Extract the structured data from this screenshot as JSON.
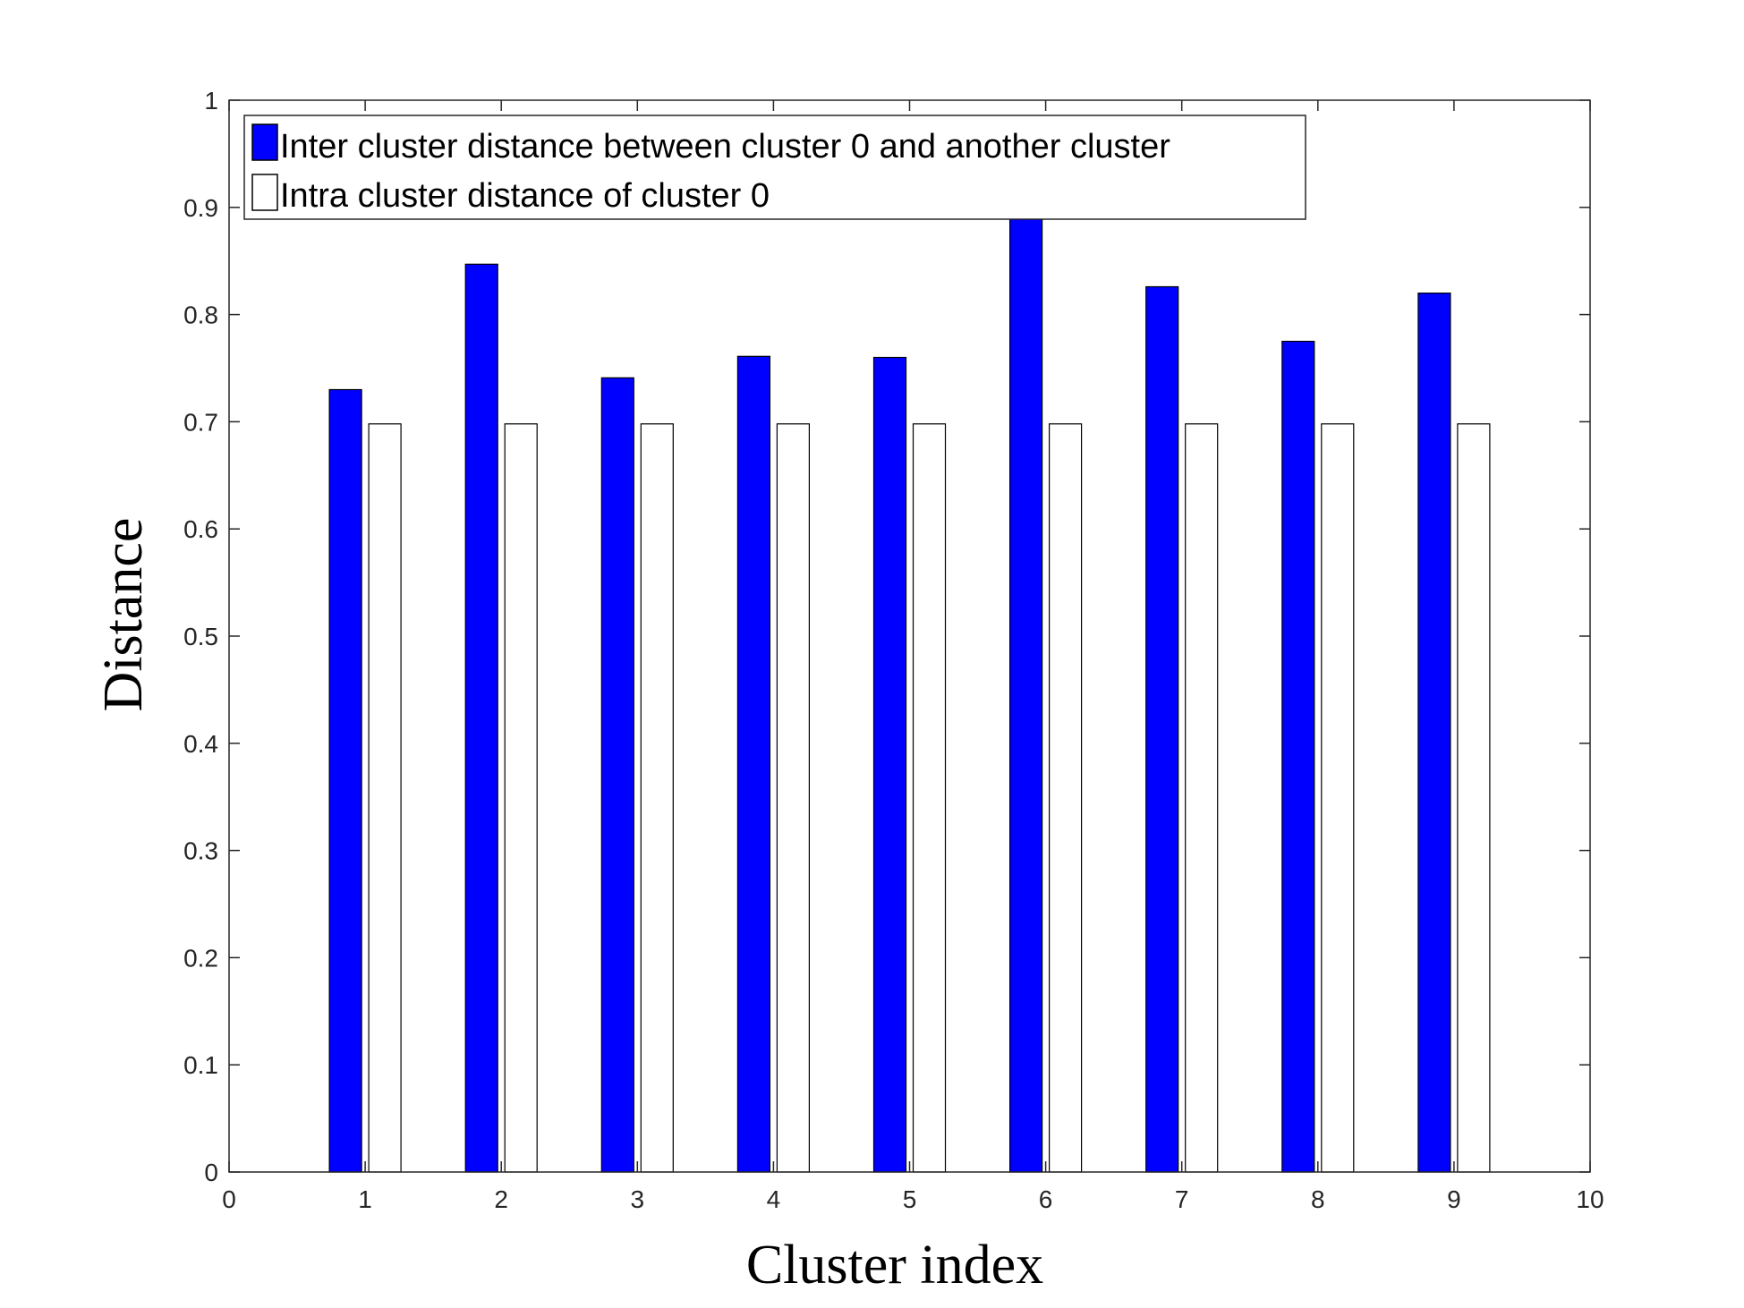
{
  "chart_data": {
    "type": "bar",
    "xlabel": "Cluster index",
    "ylabel": "Distance",
    "xlim": [
      0,
      10
    ],
    "ylim": [
      0,
      1
    ],
    "x_ticks": [
      "0",
      "1",
      "2",
      "3",
      "4",
      "5",
      "6",
      "7",
      "8",
      "9",
      "10"
    ],
    "y_ticks": [
      "0",
      "0.1",
      "0.2",
      "0.3",
      "0.4",
      "0.5",
      "0.6",
      "0.7",
      "0.8",
      "0.9",
      "1"
    ],
    "categories": [
      1,
      2,
      3,
      4,
      5,
      6,
      7,
      8,
      9
    ],
    "series": [
      {
        "name": "Inter cluster distance between cluster 0 and another cluster",
        "color": "#0000ff",
        "values": [
          0.73,
          0.847,
          0.741,
          0.761,
          0.76,
          0.89,
          0.826,
          0.775,
          0.82
        ]
      },
      {
        "name": "Intra cluster distance of cluster 0",
        "color": "#ffffff",
        "values": [
          0.698,
          0.698,
          0.698,
          0.698,
          0.698,
          0.698,
          0.698,
          0.698,
          0.698
        ]
      }
    ],
    "grid": false,
    "legend_position": "top-left"
  }
}
